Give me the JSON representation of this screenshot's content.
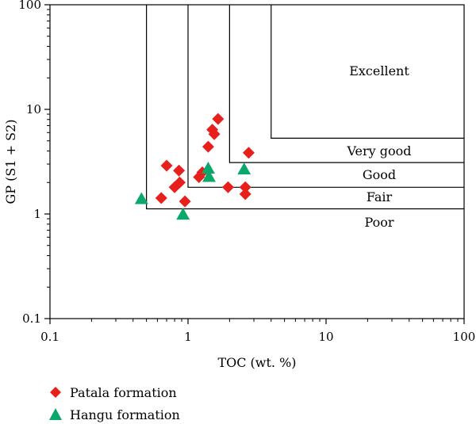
{
  "chart_data": {
    "type": "scatter",
    "xlabel": "TOC (wt. %)",
    "ylabel": "GP (S1 + S2)",
    "x_scale": "log",
    "y_scale": "log",
    "xlim": [
      0.1,
      100
    ],
    "ylim": [
      0.1,
      100
    ],
    "x_ticks": [
      "0.1",
      "1",
      "10",
      "100"
    ],
    "y_ticks": [
      "0.1",
      "1",
      "10",
      "100"
    ],
    "grid": false,
    "legend_position": "bottom-left",
    "zones": [
      {
        "label": "Excellent",
        "toc_min": 4,
        "gp_min": 5.3
      },
      {
        "label": "Very good",
        "toc_min": 2,
        "gp_min": 3.1
      },
      {
        "label": "Good",
        "toc_min": 1,
        "gp_min": 1.8
      },
      {
        "label": "Fair",
        "toc_min": 0.5,
        "gp_min": 1.12
      },
      {
        "label": "Poor",
        "toc_min": 0.5,
        "gp_min": 0.1
      }
    ],
    "series": [
      {
        "name": "Patala formation",
        "marker": "diamond",
        "color": "#e8201c",
        "points": [
          {
            "x": 0.64,
            "y": 1.42
          },
          {
            "x": 0.7,
            "y": 2.9
          },
          {
            "x": 0.8,
            "y": 1.8
          },
          {
            "x": 0.86,
            "y": 2.6
          },
          {
            "x": 0.87,
            "y": 2.0
          },
          {
            "x": 0.95,
            "y": 1.32
          },
          {
            "x": 1.2,
            "y": 2.25
          },
          {
            "x": 1.27,
            "y": 2.5
          },
          {
            "x": 1.4,
            "y": 4.4
          },
          {
            "x": 1.5,
            "y": 6.4
          },
          {
            "x": 1.55,
            "y": 5.8
          },
          {
            "x": 1.65,
            "y": 8.1
          },
          {
            "x": 1.95,
            "y": 1.8
          },
          {
            "x": 2.6,
            "y": 1.8
          },
          {
            "x": 2.6,
            "y": 1.55
          },
          {
            "x": 2.75,
            "y": 3.85
          }
        ]
      },
      {
        "name": "Hangu formation",
        "marker": "triangle",
        "color": "#0aa86a",
        "points": [
          {
            "x": 0.46,
            "y": 1.38
          },
          {
            "x": 0.92,
            "y": 0.98
          },
          {
            "x": 1.4,
            "y": 2.7
          },
          {
            "x": 1.42,
            "y": 2.25
          },
          {
            "x": 2.55,
            "y": 2.65
          }
        ]
      }
    ]
  }
}
